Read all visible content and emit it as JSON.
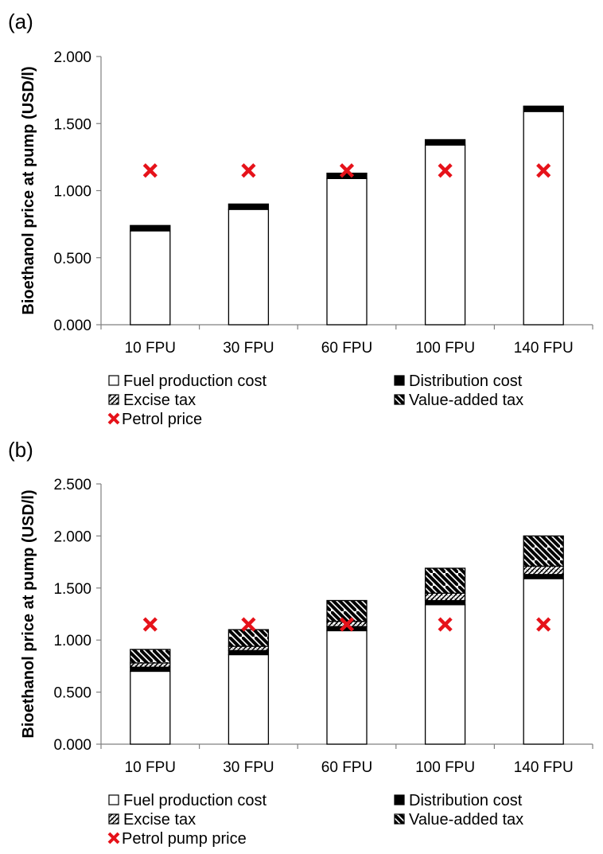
{
  "chart_data": [
    {
      "panel_label": "(a)",
      "type": "bar",
      "stacked": true,
      "ylabel": "Bioethanol price at pump (USD/l)",
      "ylim": [
        0,
        2
      ],
      "yticks": [
        "0.000",
        "0.500",
        "1.000",
        "1.500",
        "2.000"
      ],
      "categories": [
        "10 FPU",
        "30 FPU",
        "60 FPU",
        "100 FPU",
        "140 FPU"
      ],
      "series": [
        {
          "name": "Fuel production cost",
          "values": [
            0.7,
            0.86,
            1.09,
            1.34,
            1.59
          ]
        },
        {
          "name": "Distribution cost",
          "values": [
            0.04,
            0.04,
            0.04,
            0.04,
            0.04
          ]
        },
        {
          "name": "Excise tax",
          "values": [
            0,
            0,
            0,
            0,
            0
          ]
        },
        {
          "name": "Value-added tax",
          "values": [
            0,
            0,
            0,
            0,
            0
          ]
        }
      ],
      "markers": {
        "name": "Petrol price",
        "values": [
          1.15,
          1.15,
          1.15,
          1.15,
          1.15
        ]
      },
      "legend_position": "bottom",
      "grid": false
    },
    {
      "panel_label": "(b)",
      "type": "bar",
      "stacked": true,
      "ylabel": "Bioethanol price at pump (USD/l)",
      "ylim": [
        0,
        2.5
      ],
      "yticks": [
        "0.000",
        "0.500",
        "1.000",
        "1.500",
        "2.000",
        "2.500"
      ],
      "categories": [
        "10 FPU",
        "30 FPU",
        "60 FPU",
        "100 FPU",
        "140 FPU"
      ],
      "series": [
        {
          "name": "Fuel production cost",
          "values": [
            0.7,
            0.86,
            1.09,
            1.34,
            1.59
          ]
        },
        {
          "name": "Distribution cost",
          "values": [
            0.04,
            0.04,
            0.04,
            0.04,
            0.04
          ]
        },
        {
          "name": "Excise tax",
          "values": [
            0.04,
            0.04,
            0.05,
            0.07,
            0.08
          ]
        },
        {
          "name": "Value-added tax",
          "values": [
            0.13,
            0.16,
            0.2,
            0.24,
            0.29
          ]
        }
      ],
      "markers": {
        "name": "Petrol pump price",
        "values": [
          1.15,
          1.15,
          1.15,
          1.15,
          1.15
        ]
      },
      "legend_position": "bottom",
      "grid": false
    }
  ]
}
